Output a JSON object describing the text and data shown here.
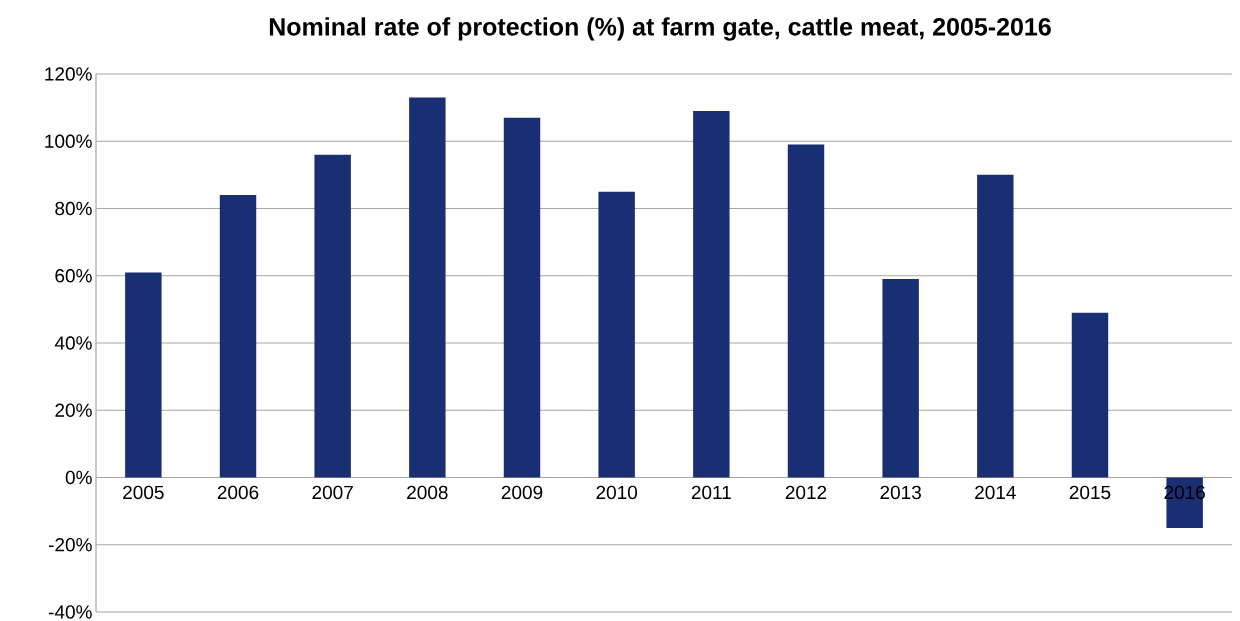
{
  "chart_data": {
    "type": "bar",
    "title": "Nominal rate of protection (%) at farm gate, cattle meat, 2005-2016",
    "categories": [
      "2005",
      "2006",
      "2007",
      "2008",
      "2009",
      "2010",
      "2011",
      "2012",
      "2013",
      "2014",
      "2015",
      "2016"
    ],
    "values": [
      61,
      84,
      96,
      113,
      107,
      85,
      109,
      99,
      59,
      90,
      49,
      -15
    ],
    "color": "#1a2e74",
    "ylim": [
      -40,
      120
    ],
    "yticks": [
      {
        "value": -40,
        "label": "-40%"
      },
      {
        "value": -20,
        "label": "-20%"
      },
      {
        "value": 0,
        "label": "0%"
      },
      {
        "value": 20,
        "label": "20%"
      },
      {
        "value": 40,
        "label": "40%"
      },
      {
        "value": 60,
        "label": "60%"
      },
      {
        "value": 80,
        "label": "80%"
      },
      {
        "value": 100,
        "label": "100%"
      },
      {
        "value": 120,
        "label": "120%"
      }
    ],
    "grid": "y"
  }
}
